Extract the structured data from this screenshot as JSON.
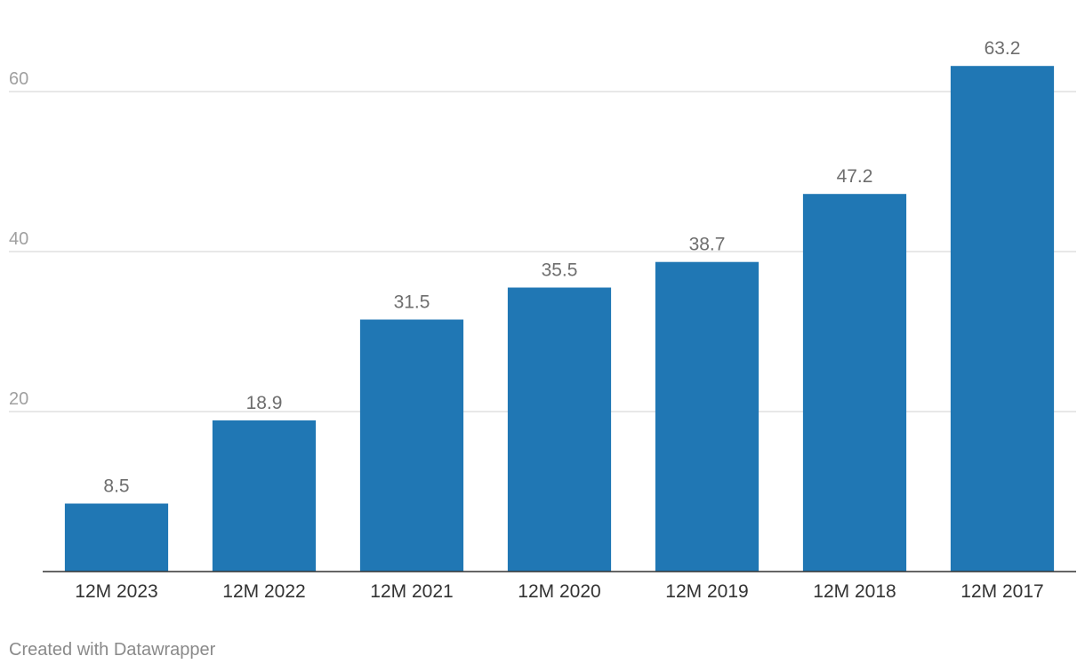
{
  "chart_data": {
    "type": "bar",
    "title": "",
    "xlabel": "",
    "ylabel": "",
    "categories": [
      "12M 2023",
      "12M 2022",
      "12M 2021",
      "12M 2020",
      "12M 2019",
      "12M 2018",
      "12M 2017"
    ],
    "values": [
      8.5,
      18.9,
      31.5,
      35.5,
      38.7,
      47.2,
      63.2
    ],
    "value_labels": [
      "8.5",
      "18.9",
      "31.5",
      "35.5",
      "38.7",
      "47.2",
      "63.2"
    ],
    "ylim": [
      0,
      68
    ],
    "yticks": [
      20,
      40,
      60
    ],
    "grid": true,
    "legend": "none",
    "colors": {
      "bar": "#2077b4",
      "grid": "#e1e1e1",
      "axis": "#333333",
      "tick_text": "#a0a0a0",
      "label_text": "#6e6e6e",
      "category_text": "#333333"
    }
  },
  "footer": {
    "credit": "Created with Datawrapper"
  }
}
